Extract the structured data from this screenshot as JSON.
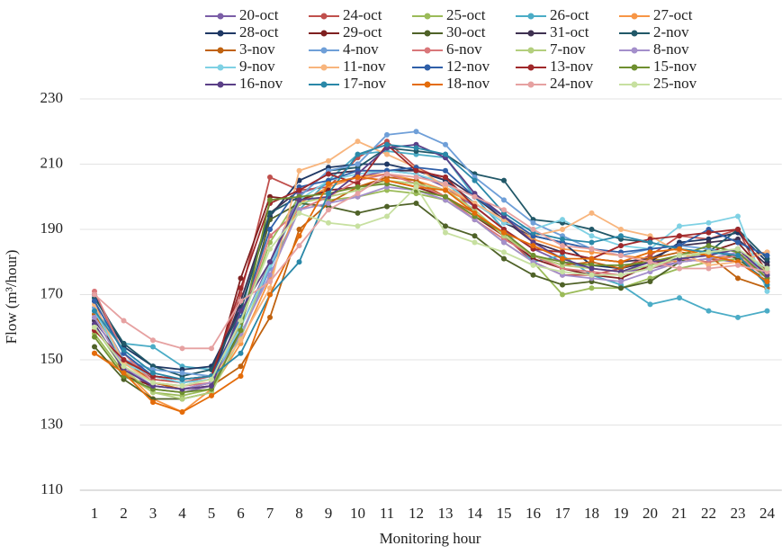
{
  "chart_data": {
    "type": "line",
    "x_label": "Monitoring hour",
    "y_label": "Flow (m³/hour)",
    "categories": [
      "1",
      "2",
      "3",
      "4",
      "5",
      "6",
      "7",
      "8",
      "9",
      "10",
      "11",
      "12",
      "13",
      "14",
      "15",
      "16",
      "17",
      "18",
      "19",
      "20",
      "21",
      "22",
      "23",
      "24"
    ],
    "ylim": [
      110,
      230
    ],
    "yticks": [
      110,
      130,
      150,
      170,
      190,
      210,
      230
    ],
    "grid": true,
    "legend": "top",
    "series": [
      {
        "name": "20-oct",
        "color": "#7b5ea7",
        "values": [
          163,
          148,
          141,
          140,
          142,
          160,
          180,
          201,
          204,
          206,
          208,
          207,
          203,
          197,
          190,
          184,
          180,
          178,
          177,
          178,
          180,
          181,
          180,
          174
        ]
      },
      {
        "name": "24-oct",
        "color": "#c0504d",
        "values": [
          170,
          152,
          144,
          143,
          145,
          170,
          206,
          202,
          203,
          212,
          217,
          209,
          205,
          195,
          188,
          180,
          176,
          176,
          178,
          182,
          188,
          187,
          190,
          172
        ]
      },
      {
        "name": "25-oct",
        "color": "#9bbb59",
        "values": [
          158,
          146,
          140,
          139,
          141,
          161,
          186,
          200,
          199,
          200,
          202,
          201,
          199,
          193,
          186,
          180,
          170,
          172,
          172,
          175,
          178,
          180,
          181,
          176
        ]
      },
      {
        "name": "26-oct",
        "color": "#4bacc6",
        "values": [
          165,
          155,
          154,
          148,
          147,
          157,
          178,
          196,
          205,
          213,
          214,
          213,
          212,
          200,
          190,
          180,
          182,
          176,
          173,
          167,
          169,
          165,
          163,
          165
        ]
      },
      {
        "name": "27-oct",
        "color": "#f79646",
        "values": [
          152,
          147,
          138,
          134,
          141,
          155,
          175,
          198,
          203,
          206,
          207,
          205,
          202,
          198,
          193,
          187,
          184,
          183,
          182,
          181,
          180,
          181,
          182,
          183
        ]
      },
      {
        "name": "28-oct",
        "color": "#1f3864",
        "values": [
          170,
          154,
          148,
          147,
          148,
          166,
          194,
          205,
          209,
          210,
          210,
          208,
          205,
          198,
          192,
          188,
          186,
          179,
          178,
          180,
          186,
          187,
          189,
          180
        ]
      },
      {
        "name": "29-oct",
        "color": "#7f2020",
        "values": [
          168,
          145,
          142,
          141,
          143,
          175,
          200,
          199,
          202,
          203,
          205,
          203,
          200,
          194,
          188,
          181,
          178,
          176,
          175,
          179,
          182,
          183,
          186,
          176
        ]
      },
      {
        "name": "30-oct",
        "color": "#4f6228",
        "values": [
          154,
          144,
          138,
          138,
          140,
          160,
          193,
          198,
          197,
          195,
          197,
          198,
          191,
          188,
          181,
          176,
          173,
          174,
          172,
          174,
          180,
          184,
          181,
          174
        ]
      },
      {
        "name": "31-oct",
        "color": "#3f3151",
        "values": [
          162,
          150,
          145,
          143,
          144,
          168,
          195,
          202,
          207,
          208,
          208,
          208,
          206,
          200,
          193,
          186,
          183,
          181,
          180,
          181,
          185,
          186,
          187,
          179
        ]
      },
      {
        "name": "2-nov",
        "color": "#215868",
        "values": [
          169,
          155,
          148,
          145,
          147,
          165,
          195,
          200,
          208,
          209,
          215,
          214,
          213,
          207,
          205,
          193,
          192,
          190,
          187,
          186,
          184,
          183,
          190,
          181
        ]
      },
      {
        "name": "3-nov",
        "color": "#c0620f",
        "values": [
          164,
          150,
          143,
          141,
          142,
          148,
          163,
          190,
          198,
          203,
          206,
          205,
          200,
          195,
          188,
          182,
          179,
          180,
          178,
          181,
          183,
          182,
          175,
          172
        ]
      },
      {
        "name": "4-nov",
        "color": "#6f9fd8",
        "values": [
          166,
          150,
          147,
          146,
          145,
          157,
          178,
          200,
          208,
          210,
          219,
          220,
          216,
          206,
          199,
          192,
          188,
          184,
          182,
          184,
          185,
          184,
          182,
          178
        ]
      },
      {
        "name": "6-nov",
        "color": "#d9777a",
        "values": [
          171,
          152,
          143,
          142,
          143,
          162,
          188,
          196,
          200,
          205,
          207,
          204,
          200,
          193,
          187,
          182,
          178,
          177,
          176,
          178,
          181,
          180,
          182,
          175
        ]
      },
      {
        "name": "7-nov",
        "color": "#b3cf7d",
        "values": [
          160,
          147,
          140,
          138,
          140,
          157,
          180,
          198,
          200,
          202,
          205,
          204,
          202,
          196,
          188,
          182,
          179,
          178,
          177,
          179,
          181,
          183,
          184,
          177
        ]
      },
      {
        "name": "8-nov",
        "color": "#a48fcb",
        "values": [
          163,
          148,
          142,
          141,
          143,
          158,
          176,
          196,
          198,
          200,
          203,
          202,
          199,
          193,
          186,
          180,
          176,
          175,
          174,
          177,
          180,
          181,
          183,
          176
        ]
      },
      {
        "name": "9-nov",
        "color": "#7fd1e4",
        "values": [
          165,
          149,
          145,
          143,
          144,
          160,
          179,
          199,
          205,
          207,
          208,
          207,
          204,
          198,
          192,
          190,
          193,
          188,
          185,
          184,
          191,
          192,
          194,
          171
        ]
      },
      {
        "name": "11-nov",
        "color": "#f8b57d",
        "values": [
          167,
          149,
          143,
          142,
          144,
          156,
          172,
          208,
          211,
          217,
          213,
          209,
          203,
          198,
          193,
          188,
          190,
          195,
          190,
          188,
          183,
          179,
          180,
          183
        ]
      },
      {
        "name": "12-nov",
        "color": "#2f5fa8",
        "values": [
          168,
          152,
          145,
          144,
          145,
          163,
          190,
          203,
          205,
          208,
          208,
          209,
          208,
          200,
          194,
          188,
          186,
          184,
          183,
          184,
          185,
          190,
          186,
          182
        ]
      },
      {
        "name": "13-nov",
        "color": "#a0282a",
        "values": [
          159,
          150,
          145,
          144,
          145,
          172,
          198,
          202,
          207,
          204,
          216,
          208,
          206,
          197,
          190,
          184,
          183,
          181,
          185,
          187,
          188,
          189,
          190,
          177
        ]
      },
      {
        "name": "15-nov",
        "color": "#6e8f2f",
        "values": [
          157,
          145,
          141,
          140,
          141,
          159,
          199,
          200,
          201,
          203,
          204,
          202,
          200,
          194,
          189,
          182,
          180,
          179,
          179,
          180,
          182,
          185,
          183,
          175
        ]
      },
      {
        "name": "16-nov",
        "color": "#5a3f87",
        "values": [
          161,
          147,
          142,
          141,
          142,
          165,
          180,
          199,
          200,
          207,
          215,
          216,
          212,
          201,
          194,
          186,
          181,
          178,
          177,
          180,
          181,
          182,
          184,
          176
        ]
      },
      {
        "name": "17-nov",
        "color": "#2a88a8",
        "values": [
          165,
          153,
          146,
          144,
          145,
          152,
          170,
          180,
          201,
          213,
          216,
          215,
          213,
          205,
          195,
          189,
          187,
          186,
          188,
          186,
          184,
          183,
          182,
          173
        ]
      },
      {
        "name": "18-nov",
        "color": "#e46c0a",
        "values": [
          152,
          146,
          137,
          134,
          139,
          145,
          170,
          188,
          204,
          206,
          205,
          203,
          202,
          195,
          189,
          185,
          181,
          181,
          180,
          183,
          184,
          182,
          180,
          174
        ]
      },
      {
        "name": "24-nov",
        "color": "#e6a1a1",
        "values": [
          170,
          162,
          156,
          153.5,
          153.5,
          168,
          174,
          185,
          196,
          201,
          207,
          206,
          204,
          200,
          196,
          190,
          185,
          184,
          182,
          180,
          178,
          178,
          179,
          177
        ]
      },
      {
        "name": "25-nov",
        "color": "#c7e0a0",
        "values": [
          160,
          148,
          143,
          142,
          144,
          162,
          184,
          195,
          192,
          191,
          194,
          203,
          189,
          186,
          183,
          179,
          177,
          176,
          176,
          178,
          182,
          183,
          184,
          178
        ]
      }
    ]
  }
}
